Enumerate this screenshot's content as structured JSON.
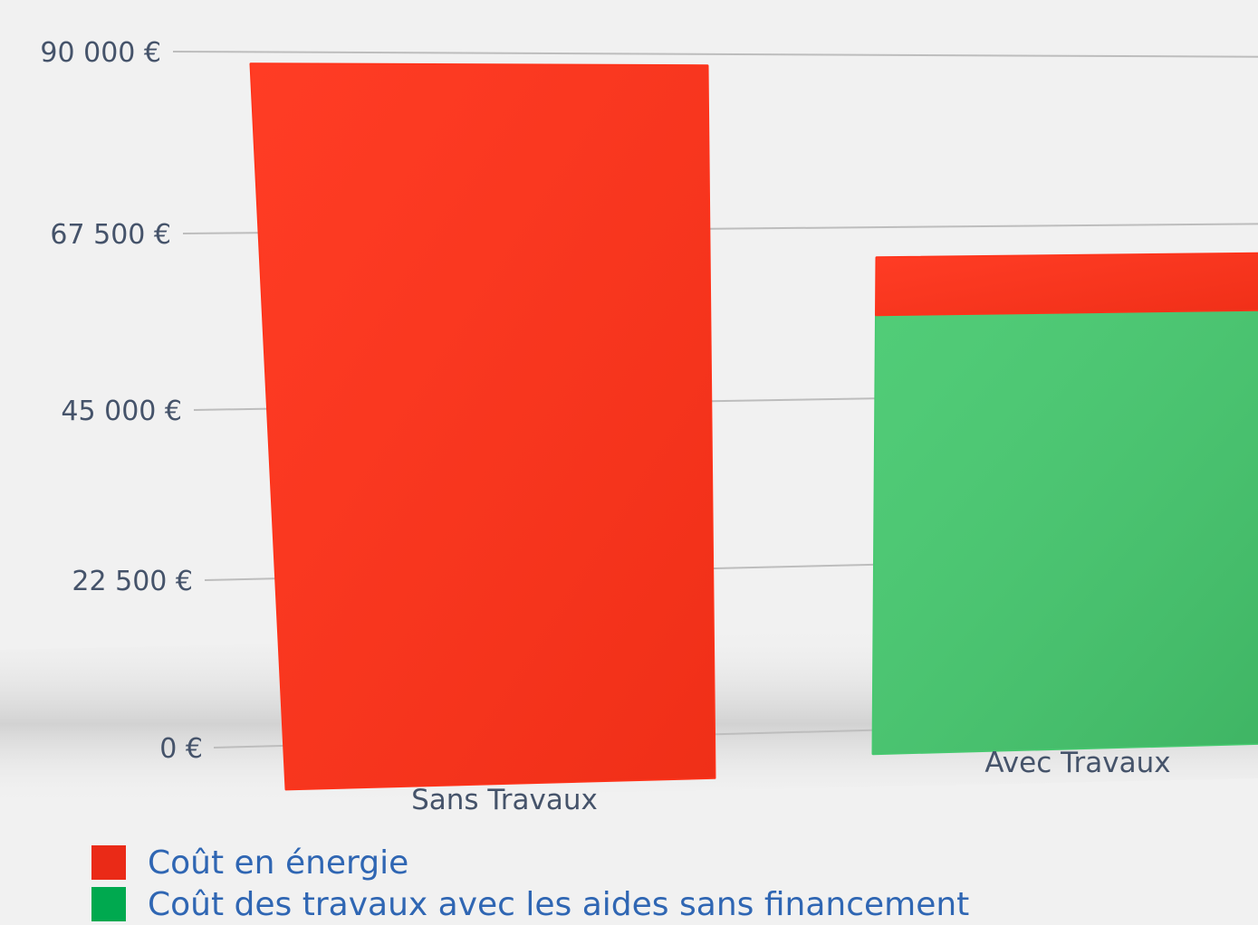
{
  "chart_data": {
    "type": "bar",
    "stacked": true,
    "categories": [
      "Sans Travaux",
      "Avec Travaux"
    ],
    "series": [
      {
        "name": "Coût des travaux avec les aides sans financement",
        "color": "#46c96f",
        "values": [
          0,
          56000
        ]
      },
      {
        "name": "Coût en énergie",
        "color": "#ff3219",
        "values": [
          88500,
          7500
        ]
      }
    ],
    "yticks": [
      0,
      22500,
      45000,
      67500,
      90000
    ],
    "ytick_labels": [
      "0 €",
      "22 500 €",
      "45 000 €",
      "67 500 €",
      "90 000 €"
    ],
    "ylim": [
      0,
      90000
    ],
    "grid": true,
    "legend_position": "bottom-left",
    "legend": [
      {
        "label": "Coût en énergie",
        "color": "#ea2a17"
      },
      {
        "label": "Coût des travaux avec les aides sans financement",
        "color": "#00a94f"
      }
    ]
  }
}
